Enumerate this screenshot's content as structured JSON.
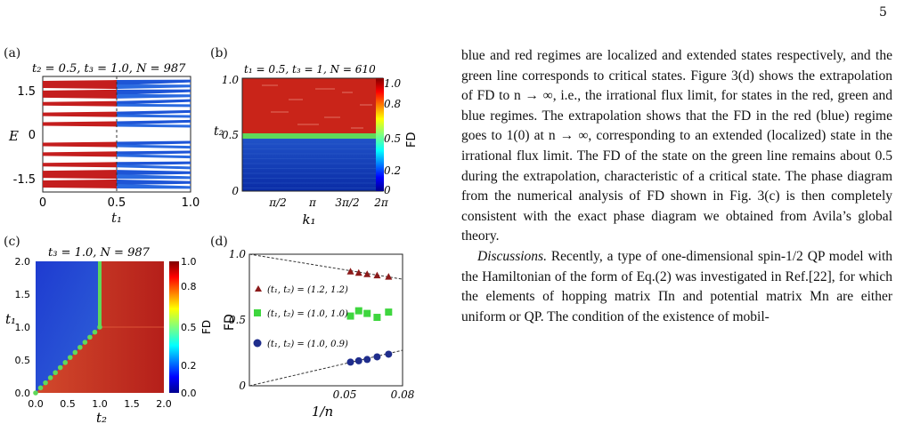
{
  "page_number": "5",
  "figure": {
    "panel_a": {
      "letter": "(a)",
      "title": "t₂ = 0.5, t₃ = 1.0, N = 987",
      "ylabel": "E",
      "xlabel": "t₁",
      "yticks": [
        "1.5",
        "0",
        "-1.5"
      ],
      "xticks": [
        "0",
        "0.5",
        "1.0"
      ]
    },
    "panel_b": {
      "letter": "(b)",
      "title": "t₁ = 0.5, t₃ = 1, N = 610",
      "ylabel": "t₂",
      "xlabel": "k₁",
      "yticks": [
        "1.0",
        "0.5",
        "0"
      ],
      "xticks": [
        "π/2",
        "π",
        "3π/2",
        "2π"
      ],
      "cbar_label": "FD",
      "cbar_ticks": [
        "1.0",
        "0.8",
        "0.5",
        "0.2",
        "0"
      ]
    },
    "panel_c": {
      "letter": "(c)",
      "title": "t₃ = 1.0, N = 987",
      "ylabel": "t₁",
      "xlabel": "t₂",
      "yticks": [
        "2.0",
        "1.5",
        "1.0",
        "0.5",
        "0.0"
      ],
      "xticks": [
        "0.0",
        "0.5",
        "1.0",
        "1.5",
        "2.0"
      ],
      "cbar_label": "FD",
      "cbar_ticks": [
        "1.0",
        "0.8",
        "0.5",
        "0.2",
        "0.0"
      ]
    },
    "panel_d": {
      "letter": "(d)",
      "ylabel": "FD",
      "xlabel": "1/n",
      "yticks": [
        "1.0",
        "0.5",
        "0"
      ],
      "xticks": [
        "0.05",
        "0.08"
      ],
      "legend": [
        "(t₁, t₂) = (1.2, 1.2)",
        "(t₁, t₂) = (1.0, 1.0)",
        "(t₁, t₂) = (1.0, 0.9)"
      ]
    }
  },
  "chart_data": {
    "type": "scatter",
    "xlim": [
      0,
      0.08
    ],
    "ylim": [
      0,
      1.0
    ],
    "xlabel": "1/n",
    "ylabel": "FD",
    "series": [
      {
        "name": "(t₁, t₂) = (1.2, 1.2)",
        "marker": "triangle",
        "color": "#8b1a1a",
        "x": [
          0.0528,
          0.0571,
          0.0615,
          0.0667,
          0.0727
        ],
        "y": [
          0.87,
          0.86,
          0.85,
          0.84,
          0.83
        ]
      },
      {
        "name": "(t₁, t₂) = (1.0, 1.0)",
        "marker": "square",
        "color": "#3ed63e",
        "x": [
          0.0528,
          0.0571,
          0.0615,
          0.0667,
          0.0727
        ],
        "y": [
          0.53,
          0.57,
          0.55,
          0.52,
          0.56
        ]
      },
      {
        "name": "(t₁, t₂) = (1.0, 0.9)",
        "marker": "circle",
        "color": "#1f2d8c",
        "x": [
          0.0528,
          0.0571,
          0.0615,
          0.0667,
          0.0727
        ],
        "y": [
          0.18,
          0.19,
          0.2,
          0.22,
          0.24
        ]
      }
    ],
    "fit_lines": [
      {
        "from": [
          0,
          1.0
        ],
        "to": [
          0.08,
          0.81
        ]
      },
      {
        "from": [
          0,
          0.0
        ],
        "to": [
          0.08,
          0.27
        ]
      }
    ]
  },
  "text": {
    "p1": "blue and red regimes are localized and extended states respectively, and the green line corresponds to critical states. Figure 3(d) shows the extrapolation of FD to n → ∞, i.e., the irrational flux limit, for states in the red, green and blue regimes. The extrapolation shows that the FD in the red (blue) regime goes to 1(0) at n → ∞, corresponding to an extended (localized) state in the irrational flux limit. The FD of the state on the green line remains about 0.5 during the extrapolation, characteristic of a critical state. The phase diagram from the numerical analysis of FD shown in Fig. 3(c) is then completely consistent with the exact phase diagram we obtained from Avila’s global theory.",
    "p2_lead": "Discussions.",
    "p2": " Recently, a type of one-dimensional spin-1/2 QP model with the Hamiltonian of the form of Eq.(2) was investigated in Ref.[22], for which the elements of hopping matrix Πn and potential matrix Mn are either uniform or QP. The condition of the existence of mobil-"
  }
}
